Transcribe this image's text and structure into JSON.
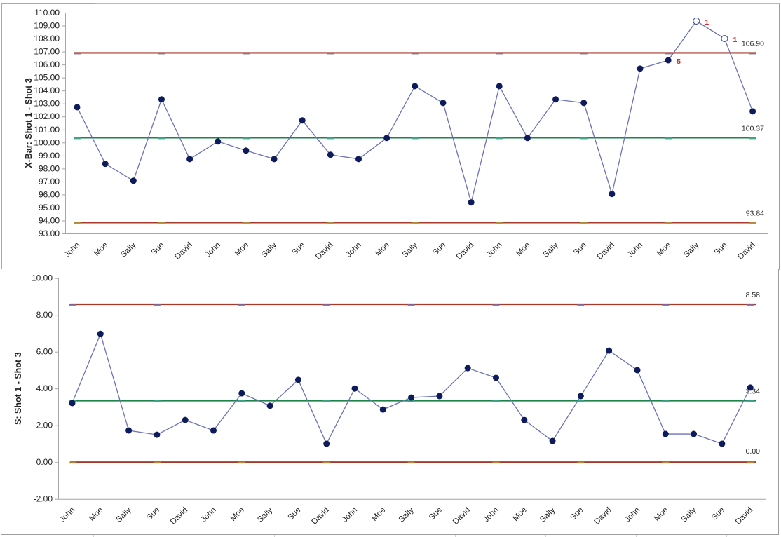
{
  "chart_data": [
    {
      "type": "line",
      "title": "",
      "ylabel": "X-Bar: Shot 1 - Shot 3",
      "xlabel": "",
      "ylim": [
        93,
        110
      ],
      "yticks": [
        "110.00",
        "109.00",
        "108.00",
        "107.00",
        "106.00",
        "105.00",
        "104.00",
        "103.00",
        "102.00",
        "101.00",
        "100.00",
        "99.00",
        "98.00",
        "97.00",
        "96.00",
        "95.00",
        "94.00",
        "93.00"
      ],
      "categories": [
        "John",
        "Moe",
        "Sally",
        "Sue",
        "David",
        "John",
        "Moe",
        "Sally",
        "Sue",
        "David",
        "John",
        "Moe",
        "Sally",
        "Sue",
        "David",
        "John",
        "Moe",
        "Sally",
        "Sue",
        "David",
        "John",
        "Moe",
        "Sally",
        "Sue",
        "David"
      ],
      "series": [
        {
          "name": "X-Bar",
          "values": [
            102.72,
            98.36,
            97.06,
            103.32,
            98.73,
            100.08,
            99.38,
            98.73,
            101.7,
            99.06,
            98.73,
            100.35,
            104.34,
            103.05,
            95.39,
            104.34,
            100.35,
            103.32,
            103.05,
            96.04,
            105.69,
            106.33,
            109.35,
            108.0,
            102.4
          ],
          "color": "#0D1A5C"
        },
        {
          "name": "UCL",
          "value": 106.9,
          "label": "106.90",
          "color": "#A63A2B"
        },
        {
          "name": "CL",
          "value": 100.37,
          "label": "100.37",
          "color": "#1E8449"
        },
        {
          "name": "LCL",
          "value": 93.84,
          "label": "93.84",
          "color": "#A63A2B"
        }
      ],
      "annotations": [
        {
          "index": 21,
          "text": "5"
        },
        {
          "index": 22,
          "text": "1"
        },
        {
          "index": 23,
          "text": "1"
        }
      ],
      "out_of_control_indices": [
        22,
        23
      ],
      "grid": false,
      "legend": "none"
    },
    {
      "type": "line",
      "title": "",
      "ylabel": "S: Shot 1 - Shot 3",
      "xlabel": "",
      "ylim": [
        -2,
        10
      ],
      "yticks": [
        "10.00",
        "8.00",
        "6.00",
        "4.00",
        "2.00",
        "0.00",
        "-2.00"
      ],
      "categories": [
        "John",
        "Moe",
        "Sally",
        "Sue",
        "David",
        "John",
        "Moe",
        "Sally",
        "Sue",
        "David",
        "John",
        "Moe",
        "Sally",
        "Sue",
        "David",
        "John",
        "Moe",
        "Sally",
        "Sue",
        "David",
        "John",
        "Moe",
        "Sally",
        "Sue",
        "David"
      ],
      "series": [
        {
          "name": "S",
          "values": [
            3.21,
            6.97,
            1.72,
            1.49,
            2.29,
            1.72,
            3.74,
            3.06,
            4.47,
            1.0,
            4.0,
            2.86,
            3.51,
            3.59,
            5.11,
            4.58,
            2.29,
            1.15,
            3.59,
            6.06,
            5.0,
            1.53,
            1.53,
            1.0,
            4.05
          ],
          "color": "#0D1A5C"
        },
        {
          "name": "UCL",
          "value": 8.58,
          "label": "8.58",
          "color": "#A63A2B"
        },
        {
          "name": "CL",
          "value": 3.34,
          "label": "3.34",
          "color": "#1E8449"
        },
        {
          "name": "LCL",
          "value": 0.0,
          "label": "0.00",
          "color": "#A63A2B"
        }
      ],
      "grid": false,
      "legend": "none"
    }
  ],
  "colors": {
    "data_line": "#6B72B8",
    "marker": "#0D1A5C",
    "ucl_lcl": "#A63A2B",
    "center": "#1E8449",
    "flag": "#E8202A",
    "selection_border": "#D9A441"
  }
}
